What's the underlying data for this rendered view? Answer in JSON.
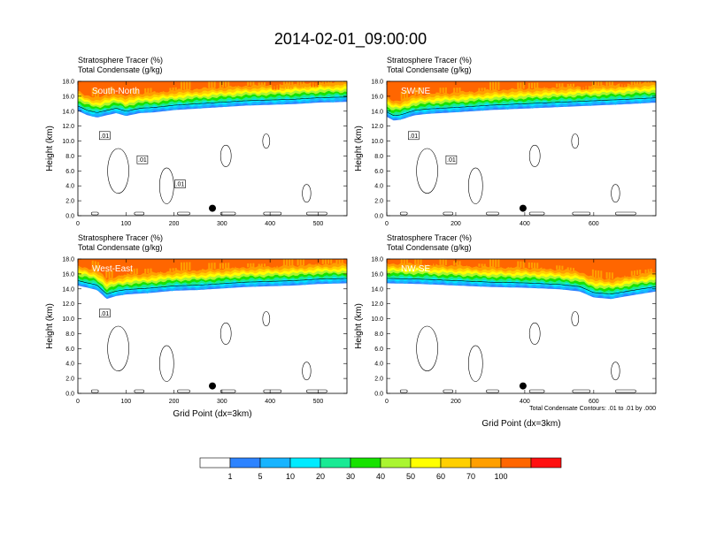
{
  "title": "2014-02-01_09:00:00",
  "colors": {
    "levels": [
      "#ffffff",
      "#2d83ff",
      "#18b4ff",
      "#00ebff",
      "#19ea94",
      "#17e200",
      "#aaf531",
      "#ffff00",
      "#ffcf00",
      "#ff9f00",
      "#ff6600",
      "#ff1010"
    ]
  },
  "chart_data": [
    {
      "type": "heatmap",
      "panel_label": "South-North",
      "subtitle_1": "Stratosphere Tracer   (%)",
      "subtitle_2": "Total Condensate   (g/kg)",
      "ylabel": "Height (km)",
      "xlabel": "",
      "xlim": [
        0,
        560
      ],
      "ylim": [
        0,
        18
      ],
      "xticks": [
        0,
        100,
        200,
        300,
        400,
        500
      ],
      "yticks": [
        "0.0",
        "2.0",
        "4.0",
        "6.0",
        "8.0",
        "10.0",
        "12.0",
        "14.0",
        "16.0",
        "18.0"
      ],
      "tracer_top_km": [
        [
          0,
          14.2
        ],
        [
          20,
          13.6
        ],
        [
          40,
          13.3
        ],
        [
          60,
          13.6
        ],
        [
          80,
          13.9
        ],
        [
          100,
          13.5
        ],
        [
          130,
          13.9
        ],
        [
          160,
          14.0
        ],
        [
          200,
          14.3
        ],
        [
          250,
          14.5
        ],
        [
          300,
          14.7
        ],
        [
          350,
          14.9
        ],
        [
          400,
          15.0
        ],
        [
          450,
          15.1
        ],
        [
          500,
          15.3
        ],
        [
          560,
          15.4
        ]
      ],
      "condensate_contour_labels": [
        ".01",
        ".01",
        ".01"
      ],
      "marker_x": 280,
      "marker_y_km": 1.0
    },
    {
      "type": "heatmap",
      "panel_label": "SW-NE",
      "subtitle_1": "Stratosphere Tracer   (%)",
      "subtitle_2": "Total Condensate   (g/kg)",
      "ylabel": "Height (km)",
      "xlabel": "",
      "xlim": [
        0,
        780
      ],
      "ylim": [
        0,
        18
      ],
      "xticks": [
        0,
        200,
        400,
        600
      ],
      "yticks": [
        "0.0",
        "2.0",
        "4.0",
        "6.0",
        "8.0",
        "10.0",
        "12.0",
        "14.0",
        "16.0",
        "18.0"
      ],
      "tracer_top_km": [
        [
          0,
          13.4
        ],
        [
          20,
          12.9
        ],
        [
          40,
          13.0
        ],
        [
          80,
          13.6
        ],
        [
          120,
          13.8
        ],
        [
          200,
          14.0
        ],
        [
          300,
          14.3
        ],
        [
          400,
          14.5
        ],
        [
          500,
          14.7
        ],
        [
          600,
          14.9
        ],
        [
          700,
          15.1
        ],
        [
          780,
          15.3
        ]
      ],
      "condensate_contour_labels": [
        ".01",
        ".01"
      ],
      "marker_x": 395,
      "marker_y_km": 1.0
    },
    {
      "type": "heatmap",
      "panel_label": "West-East",
      "subtitle_1": "Stratosphere Tracer   (%)",
      "subtitle_2": "Total Condensate   (g/kg)",
      "ylabel": "Height (km)",
      "xlabel": "Grid Point (dx=3km)",
      "xlim": [
        0,
        560
      ],
      "ylim": [
        0,
        18
      ],
      "xticks": [
        0,
        100,
        200,
        300,
        400,
        500
      ],
      "yticks": [
        "0.0",
        "2.0",
        "4.0",
        "6.0",
        "8.0",
        "10.0",
        "12.0",
        "14.0",
        "16.0",
        "18.0"
      ],
      "tracer_top_km": [
        [
          0,
          14.6
        ],
        [
          40,
          14.0
        ],
        [
          60,
          12.8
        ],
        [
          80,
          13.2
        ],
        [
          100,
          13.4
        ],
        [
          150,
          13.6
        ],
        [
          200,
          13.9
        ],
        [
          250,
          14.0
        ],
        [
          300,
          14.2
        ],
        [
          350,
          14.4
        ],
        [
          400,
          14.5
        ],
        [
          450,
          14.6
        ],
        [
          500,
          14.8
        ],
        [
          560,
          14.9
        ]
      ],
      "condensate_contour_labels": [
        ".01"
      ],
      "marker_x": 280,
      "marker_y_km": 1.0
    },
    {
      "type": "heatmap",
      "panel_label": "NW-SE",
      "subtitle_1": "Stratosphere Tracer   (%)",
      "subtitle_2": "Total Condensate   (g/kg)",
      "ylabel": "Height (km)",
      "xlabel": "Grid Point (dx=3km)",
      "xlim": [
        0,
        780
      ],
      "ylim": [
        0,
        18
      ],
      "xticks": [
        0,
        200,
        400,
        600
      ],
      "yticks": [
        "0.0",
        "2.0",
        "4.0",
        "6.0",
        "8.0",
        "10.0",
        "12.0",
        "14.0",
        "16.0",
        "18.0"
      ],
      "tracer_top_km": [
        [
          0,
          14.9
        ],
        [
          100,
          14.8
        ],
        [
          200,
          14.6
        ],
        [
          300,
          14.4
        ],
        [
          400,
          14.3
        ],
        [
          500,
          14.1
        ],
        [
          560,
          13.8
        ],
        [
          600,
          13.0
        ],
        [
          650,
          12.8
        ],
        [
          700,
          13.2
        ],
        [
          740,
          13.5
        ],
        [
          780,
          13.8
        ]
      ],
      "condensate_contour_labels": [],
      "marker_x": 395,
      "marker_y_km": 1.0,
      "footnote": "Total Condensate Contours: .01 to .01 by .000"
    }
  ],
  "colorbar": {
    "levels": [
      "1",
      "5",
      "10",
      "20",
      "30",
      "40",
      "50",
      "60",
      "70",
      "100"
    ]
  }
}
